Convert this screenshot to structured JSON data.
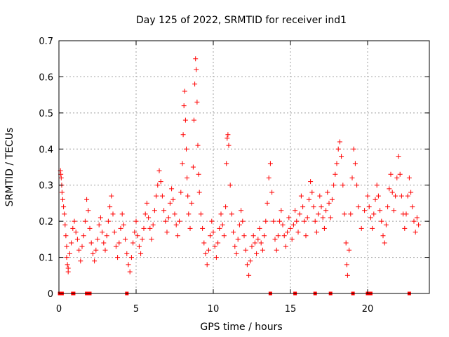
{
  "chart_data": {
    "type": "scatter",
    "title": "Day 125 of 2022, SRMTID for receiver ind1",
    "xlabel": "GPS time / hours",
    "ylabel": "SRMTID / TECUs",
    "xlim": [
      0,
      24
    ],
    "ylim": [
      0,
      0.7
    ],
    "xticks": [
      0,
      5,
      10,
      15,
      20
    ],
    "xtick_labels": [
      "0",
      "5",
      "10",
      "15",
      "20"
    ],
    "yticks": [
      0,
      0.1,
      0.2,
      0.3,
      0.4,
      0.5,
      0.6,
      0.7
    ],
    "ytick_labels": [
      "0",
      "0.1",
      "0.2",
      "0.3",
      "0.4",
      "0.5",
      "0.6",
      "0.7"
    ],
    "grid": true,
    "marker": "+",
    "color": "#ff0000",
    "series": [
      {
        "name": "SRMTID",
        "points": [
          [
            0.1,
            0.34
          ],
          [
            0.12,
            0.33
          ],
          [
            0.15,
            0.32
          ],
          [
            0.18,
            0.3
          ],
          [
            0.2,
            0.28
          ],
          [
            0.25,
            0.26
          ],
          [
            0.3,
            0.24
          ],
          [
            0.35,
            0.22
          ],
          [
            0.4,
            0.19
          ],
          [
            0.45,
            0.16
          ],
          [
            0.5,
            0.13
          ],
          [
            0.5,
            0.1
          ],
          [
            0.55,
            0.08
          ],
          [
            0.6,
            0.07
          ],
          [
            0.6,
            0.06
          ],
          [
            0.7,
            0.11
          ],
          [
            0.8,
            0.14
          ],
          [
            0.9,
            0.18
          ],
          [
            1.0,
            0.2
          ],
          [
            1.1,
            0.17
          ],
          [
            1.2,
            0.15
          ],
          [
            1.3,
            0.12
          ],
          [
            1.4,
            0.09
          ],
          [
            1.5,
            0.13
          ],
          [
            1.6,
            0.16
          ],
          [
            1.7,
            0.2
          ],
          [
            1.8,
            0.26
          ],
          [
            1.9,
            0.23
          ],
          [
            2.0,
            0.18
          ],
          [
            2.1,
            0.14
          ],
          [
            2.2,
            0.11
          ],
          [
            2.3,
            0.09
          ],
          [
            2.4,
            0.12
          ],
          [
            2.5,
            0.15
          ],
          [
            2.6,
            0.19
          ],
          [
            2.7,
            0.21
          ],
          [
            2.8,
            0.17
          ],
          [
            2.9,
            0.14
          ],
          [
            3.0,
            0.12
          ],
          [
            3.1,
            0.16
          ],
          [
            3.2,
            0.2
          ],
          [
            3.3,
            0.24
          ],
          [
            3.4,
            0.27
          ],
          [
            3.5,
            0.22
          ],
          [
            3.6,
            0.17
          ],
          [
            3.7,
            0.13
          ],
          [
            3.8,
            0.1
          ],
          [
            3.9,
            0.14
          ],
          [
            4.0,
            0.18
          ],
          [
            4.1,
            0.22
          ],
          [
            4.2,
            0.19
          ],
          [
            4.3,
            0.15
          ],
          [
            4.4,
            0.11
          ],
          [
            4.5,
            0.08
          ],
          [
            4.6,
            0.06
          ],
          [
            4.7,
            0.1
          ],
          [
            4.8,
            0.14
          ],
          [
            4.9,
            0.17
          ],
          [
            5.0,
            0.2
          ],
          [
            5.1,
            0.16
          ],
          [
            5.2,
            0.13
          ],
          [
            5.3,
            0.11
          ],
          [
            5.4,
            0.15
          ],
          [
            5.5,
            0.18
          ],
          [
            5.6,
            0.22
          ],
          [
            5.7,
            0.25
          ],
          [
            5.8,
            0.21
          ],
          [
            5.9,
            0.18
          ],
          [
            6.0,
            0.15
          ],
          [
            6.1,
            0.19
          ],
          [
            6.2,
            0.23
          ],
          [
            6.3,
            0.27
          ],
          [
            6.4,
            0.3
          ],
          [
            6.5,
            0.34
          ],
          [
            6.6,
            0.31
          ],
          [
            6.7,
            0.27
          ],
          [
            6.8,
            0.23
          ],
          [
            6.9,
            0.2
          ],
          [
            7.0,
            0.17
          ],
          [
            7.1,
            0.21
          ],
          [
            7.2,
            0.25
          ],
          [
            7.3,
            0.29
          ],
          [
            7.4,
            0.26
          ],
          [
            7.5,
            0.22
          ],
          [
            7.6,
            0.19
          ],
          [
            7.7,
            0.16
          ],
          [
            7.8,
            0.2
          ],
          [
            7.9,
            0.28
          ],
          [
            8.0,
            0.36
          ],
          [
            8.05,
            0.44
          ],
          [
            8.1,
            0.52
          ],
          [
            8.15,
            0.56
          ],
          [
            8.2,
            0.48
          ],
          [
            8.25,
            0.4
          ],
          [
            8.3,
            0.32
          ],
          [
            8.35,
            0.27
          ],
          [
            8.4,
            0.22
          ],
          [
            8.5,
            0.18
          ],
          [
            8.6,
            0.25
          ],
          [
            8.7,
            0.35
          ],
          [
            8.75,
            0.48
          ],
          [
            8.8,
            0.58
          ],
          [
            8.85,
            0.65
          ],
          [
            8.9,
            0.62
          ],
          [
            8.95,
            0.53
          ],
          [
            9.0,
            0.41
          ],
          [
            9.05,
            0.33
          ],
          [
            9.1,
            0.28
          ],
          [
            9.2,
            0.22
          ],
          [
            9.3,
            0.18
          ],
          [
            9.4,
            0.14
          ],
          [
            9.5,
            0.11
          ],
          [
            9.6,
            0.08
          ],
          [
            9.7,
            0.12
          ],
          [
            9.8,
            0.16
          ],
          [
            9.9,
            0.2
          ],
          [
            10.0,
            0.17
          ],
          [
            10.1,
            0.13
          ],
          [
            10.2,
            0.1
          ],
          [
            10.3,
            0.14
          ],
          [
            10.4,
            0.18
          ],
          [
            10.5,
            0.22
          ],
          [
            10.6,
            0.19
          ],
          [
            10.7,
            0.16
          ],
          [
            10.8,
            0.24
          ],
          [
            10.85,
            0.36
          ],
          [
            10.9,
            0.43
          ],
          [
            10.95,
            0.44
          ],
          [
            11.0,
            0.41
          ],
          [
            11.1,
            0.3
          ],
          [
            11.2,
            0.22
          ],
          [
            11.3,
            0.17
          ],
          [
            11.4,
            0.13
          ],
          [
            11.5,
            0.11
          ],
          [
            11.6,
            0.15
          ],
          [
            11.7,
            0.19
          ],
          [
            11.8,
            0.23
          ],
          [
            11.9,
            0.2
          ],
          [
            12.0,
            0.16
          ],
          [
            12.1,
            0.12
          ],
          [
            12.2,
            0.08
          ],
          [
            12.3,
            0.05
          ],
          [
            12.4,
            0.09
          ],
          [
            12.5,
            0.13
          ],
          [
            12.6,
            0.16
          ],
          [
            12.7,
            0.14
          ],
          [
            12.8,
            0.11
          ],
          [
            12.9,
            0.15
          ],
          [
            13.0,
            0.18
          ],
          [
            13.1,
            0.14
          ],
          [
            13.2,
            0.12
          ],
          [
            13.3,
            0.16
          ],
          [
            13.4,
            0.2
          ],
          [
            13.5,
            0.25
          ],
          [
            13.6,
            0.32
          ],
          [
            13.7,
            0.36
          ],
          [
            13.8,
            0.28
          ],
          [
            13.9,
            0.2
          ],
          [
            14.0,
            0.15
          ],
          [
            14.1,
            0.12
          ],
          [
            14.2,
            0.16
          ],
          [
            14.3,
            0.2
          ],
          [
            14.4,
            0.23
          ],
          [
            14.5,
            0.19
          ],
          [
            14.6,
            0.16
          ],
          [
            14.7,
            0.13
          ],
          [
            14.8,
            0.17
          ],
          [
            14.9,
            0.21
          ],
          [
            15.0,
            0.18
          ],
          [
            15.1,
            0.15
          ],
          [
            15.2,
            0.19
          ],
          [
            15.3,
            0.23
          ],
          [
            15.4,
            0.2
          ],
          [
            15.5,
            0.17
          ],
          [
            15.6,
            0.22
          ],
          [
            15.7,
            0.27
          ],
          [
            15.8,
            0.24
          ],
          [
            15.9,
            0.2
          ],
          [
            16.0,
            0.16
          ],
          [
            16.1,
            0.21
          ],
          [
            16.2,
            0.26
          ],
          [
            16.3,
            0.31
          ],
          [
            16.4,
            0.28
          ],
          [
            16.5,
            0.24
          ],
          [
            16.6,
            0.2
          ],
          [
            16.7,
            0.17
          ],
          [
            16.8,
            0.22
          ],
          [
            16.9,
            0.27
          ],
          [
            17.0,
            0.24
          ],
          [
            17.1,
            0.21
          ],
          [
            17.2,
            0.18
          ],
          [
            17.3,
            0.23
          ],
          [
            17.4,
            0.28
          ],
          [
            17.5,
            0.25
          ],
          [
            17.6,
            0.21
          ],
          [
            17.7,
            0.26
          ],
          [
            17.8,
            0.3
          ],
          [
            17.9,
            0.33
          ],
          [
            18.0,
            0.36
          ],
          [
            18.1,
            0.4
          ],
          [
            18.2,
            0.42
          ],
          [
            18.3,
            0.38
          ],
          [
            18.4,
            0.3
          ],
          [
            18.5,
            0.22
          ],
          [
            18.6,
            0.14
          ],
          [
            18.65,
            0.08
          ],
          [
            18.7,
            0.05
          ],
          [
            18.8,
            0.12
          ],
          [
            18.9,
            0.22
          ],
          [
            19.0,
            0.32
          ],
          [
            19.1,
            0.4
          ],
          [
            19.2,
            0.36
          ],
          [
            19.3,
            0.3
          ],
          [
            19.4,
            0.24
          ],
          [
            19.6,
            0.18
          ],
          [
            19.8,
            0.23
          ],
          [
            20.0,
            0.27
          ],
          [
            20.1,
            0.24
          ],
          [
            20.2,
            0.21
          ],
          [
            20.3,
            0.18
          ],
          [
            20.4,
            0.22
          ],
          [
            20.5,
            0.26
          ],
          [
            20.6,
            0.3
          ],
          [
            20.7,
            0.27
          ],
          [
            20.8,
            0.23
          ],
          [
            20.9,
            0.2
          ],
          [
            21.0,
            0.16
          ],
          [
            21.1,
            0.14
          ],
          [
            21.2,
            0.19
          ],
          [
            21.3,
            0.24
          ],
          [
            21.4,
            0.29
          ],
          [
            21.5,
            0.33
          ],
          [
            21.6,
            0.28
          ],
          [
            21.7,
            0.23
          ],
          [
            21.8,
            0.27
          ],
          [
            21.9,
            0.32
          ],
          [
            22.0,
            0.38
          ],
          [
            22.1,
            0.33
          ],
          [
            22.2,
            0.27
          ],
          [
            22.3,
            0.22
          ],
          [
            22.4,
            0.18
          ],
          [
            22.5,
            0.22
          ],
          [
            22.6,
            0.27
          ],
          [
            22.7,
            0.32
          ],
          [
            22.8,
            0.28
          ],
          [
            22.9,
            0.24
          ],
          [
            23.0,
            0.2
          ],
          [
            23.1,
            0.17
          ],
          [
            23.2,
            0.21
          ],
          [
            23.3,
            0.19
          ]
        ]
      }
    ],
    "zero_markers": [
      0.05,
      0.2,
      0.9,
      0.95,
      1.8,
      2.0,
      4.4,
      13.7,
      15.3,
      16.6,
      17.6,
      19.05,
      20.0,
      20.2,
      22.7
    ]
  }
}
